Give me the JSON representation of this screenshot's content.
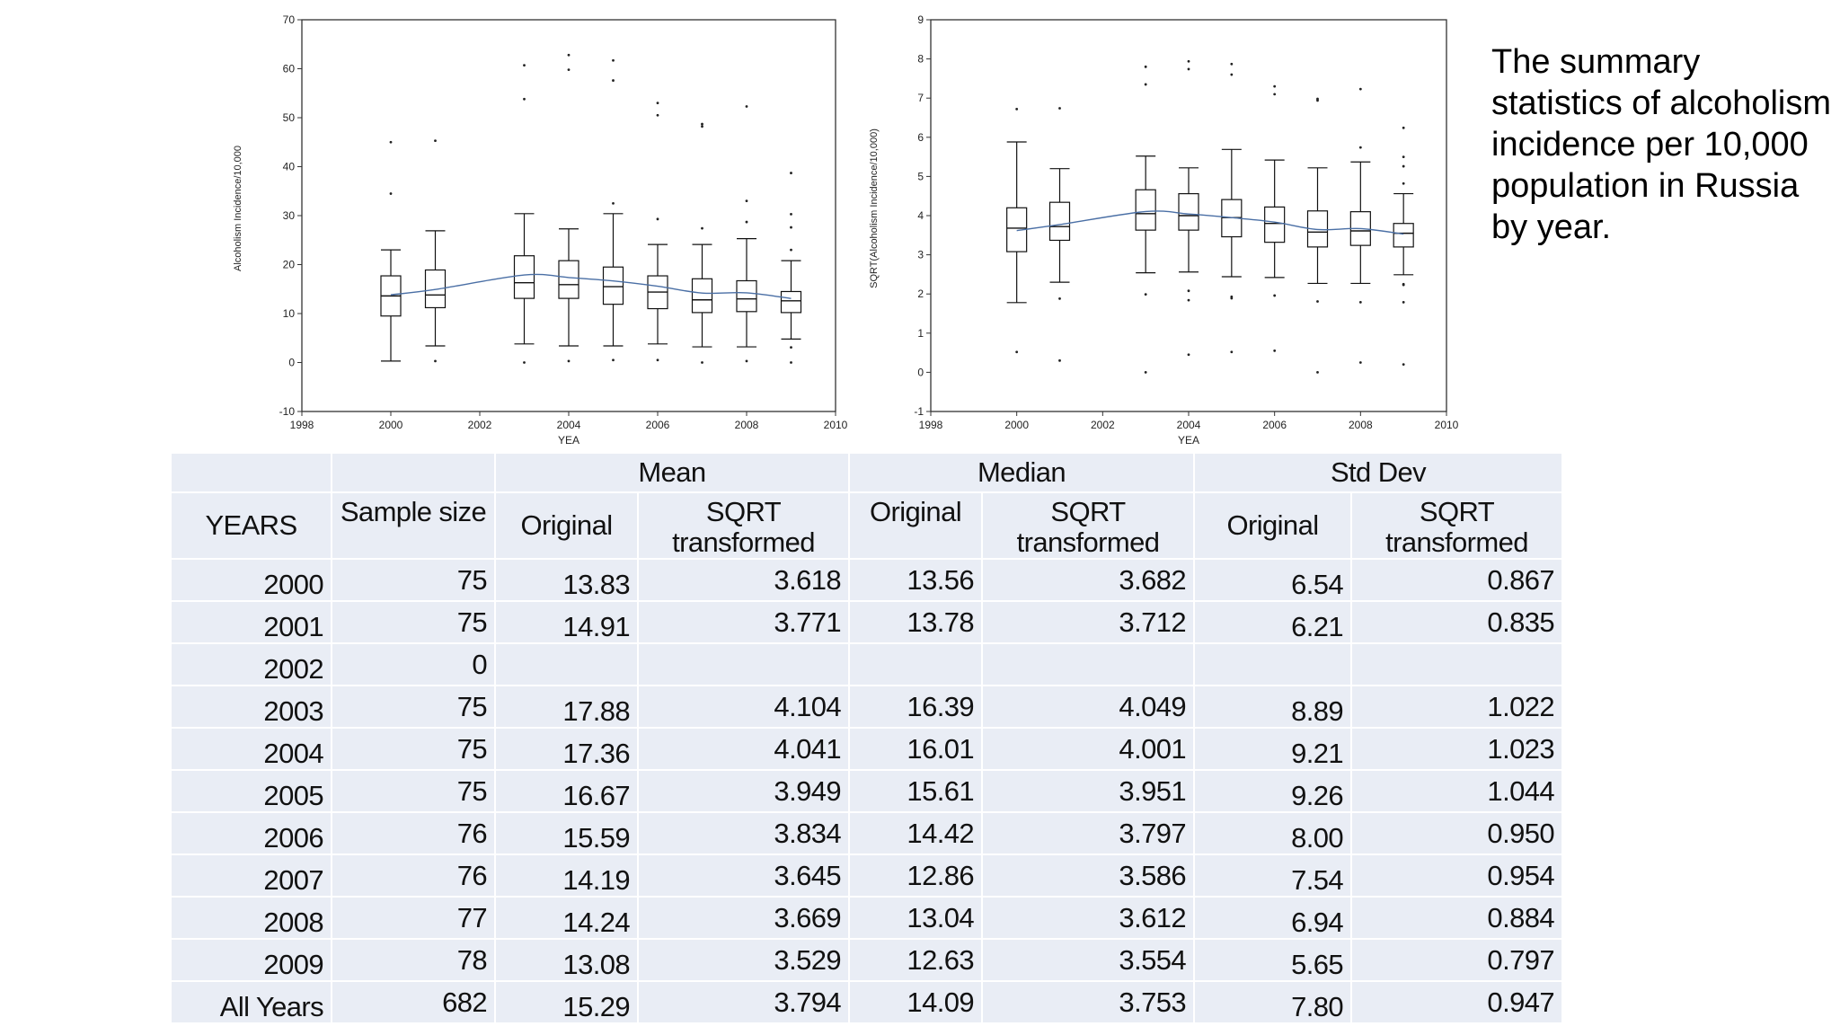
{
  "caption": "The summary statistics of alcoholism incidence per 10,000 population in Russia by year.",
  "chart_data": [
    {
      "type": "boxplot",
      "xlabel": "YEA",
      "ylabel": "Alcoholism Incidence/10,000",
      "xlim": [
        1998,
        2010
      ],
      "ylim": [
        -10,
        70
      ],
      "xticks": [
        1998,
        2000,
        2002,
        2004,
        2006,
        2008,
        2010
      ],
      "yticks": [
        -10,
        0,
        10,
        20,
        30,
        40,
        50,
        60,
        70
      ],
      "grid": false,
      "line_color": "#4a6fa5",
      "boxes": [
        {
          "x": 2000,
          "whisker_low": 0.3,
          "q1": 9.5,
          "median": 13.6,
          "q3": 17.7,
          "whisker_high": 23.0,
          "outliers": [
            34.5,
            45.0
          ]
        },
        {
          "x": 2001,
          "whisker_low": 3.4,
          "q1": 11.2,
          "median": 13.8,
          "q3": 18.9,
          "whisker_high": 26.9,
          "outliers": [
            0.3,
            45.3
          ]
        },
        {
          "x": 2003,
          "whisker_low": 3.8,
          "q1": 13.1,
          "median": 16.3,
          "q3": 21.8,
          "whisker_high": 30.4,
          "outliers": [
            0.0,
            53.8,
            60.7
          ]
        },
        {
          "x": 2004,
          "whisker_low": 3.4,
          "q1": 13.1,
          "median": 15.9,
          "q3": 20.8,
          "whisker_high": 27.3,
          "outliers": [
            0.3,
            59.8,
            62.8
          ]
        },
        {
          "x": 2005,
          "whisker_low": 3.4,
          "q1": 11.9,
          "median": 15.5,
          "q3": 19.5,
          "whisker_high": 30.4,
          "outliers": [
            0.5,
            32.5,
            57.6,
            61.7
          ]
        },
        {
          "x": 2006,
          "whisker_low": 3.8,
          "q1": 11.0,
          "median": 14.4,
          "q3": 17.7,
          "whisker_high": 24.1,
          "outliers": [
            0.5,
            29.3,
            50.5,
            53.0
          ]
        },
        {
          "x": 2007,
          "whisker_low": 3.2,
          "q1": 10.2,
          "median": 12.8,
          "q3": 17.1,
          "whisker_high": 24.1,
          "outliers": [
            0.0,
            27.4,
            48.2,
            48.7
          ]
        },
        {
          "x": 2008,
          "whisker_low": 3.2,
          "q1": 10.4,
          "median": 13.0,
          "q3": 16.7,
          "whisker_high": 25.3,
          "outliers": [
            0.3,
            28.7,
            33.0,
            52.3
          ]
        },
        {
          "x": 2009,
          "whisker_low": 4.8,
          "q1": 10.2,
          "median": 12.6,
          "q3": 14.5,
          "whisker_high": 20.8,
          "outliers": [
            0.0,
            3.1,
            23.0,
            27.6,
            30.3,
            38.7
          ]
        }
      ],
      "mean_line": {
        "x": [
          2000,
          2001,
          2003,
          2004,
          2005,
          2006,
          2007,
          2008,
          2009
        ],
        "y": [
          13.83,
          14.91,
          17.88,
          17.36,
          16.67,
          15.59,
          14.19,
          14.24,
          13.08
        ]
      }
    },
    {
      "type": "boxplot",
      "xlabel": "YEA",
      "ylabel": "SQRT(Alcoholism Incidence/10,000)",
      "xlim": [
        1998,
        2010
      ],
      "ylim": [
        -1,
        9
      ],
      "xticks": [
        1998,
        2000,
        2002,
        2004,
        2006,
        2008,
        2010
      ],
      "yticks": [
        -1,
        0,
        1,
        2,
        3,
        4,
        5,
        6,
        7,
        8,
        9
      ],
      "grid": false,
      "line_color": "#4a6fa5",
      "boxes": [
        {
          "x": 2000,
          "whisker_low": 1.78,
          "q1": 3.08,
          "median": 3.68,
          "q3": 4.2,
          "whisker_high": 5.88,
          "outliers": [
            0.52,
            6.72
          ]
        },
        {
          "x": 2001,
          "whisker_low": 2.3,
          "q1": 3.37,
          "median": 3.72,
          "q3": 4.34,
          "whisker_high": 5.2,
          "outliers": [
            0.3,
            1.88,
            6.74
          ]
        },
        {
          "x": 2003,
          "whisker_low": 2.54,
          "q1": 3.63,
          "median": 4.05,
          "q3": 4.66,
          "whisker_high": 5.52,
          "outliers": [
            0.0,
            1.99,
            7.35,
            7.8
          ]
        },
        {
          "x": 2004,
          "whisker_low": 2.56,
          "q1": 3.63,
          "median": 4.0,
          "q3": 4.56,
          "whisker_high": 5.22,
          "outliers": [
            0.45,
            1.84,
            2.08,
            7.74,
            7.94
          ]
        },
        {
          "x": 2005,
          "whisker_low": 2.44,
          "q1": 3.46,
          "median": 3.95,
          "q3": 4.41,
          "whisker_high": 5.69,
          "outliers": [
            0.52,
            1.89,
            1.93,
            7.6,
            7.87
          ]
        },
        {
          "x": 2006,
          "whisker_low": 2.42,
          "q1": 3.32,
          "median": 3.8,
          "q3": 4.22,
          "whisker_high": 5.42,
          "outliers": [
            0.55,
            1.96,
            7.1,
            7.3
          ]
        },
        {
          "x": 2007,
          "whisker_low": 2.27,
          "q1": 3.2,
          "median": 3.58,
          "q3": 4.12,
          "whisker_high": 5.22,
          "outliers": [
            0.0,
            1.81,
            6.94,
            6.98
          ]
        },
        {
          "x": 2008,
          "whisker_low": 2.27,
          "q1": 3.24,
          "median": 3.61,
          "q3": 4.1,
          "whisker_high": 5.37,
          "outliers": [
            0.25,
            1.79,
            5.74,
            7.23
          ]
        },
        {
          "x": 2009,
          "whisker_low": 2.49,
          "q1": 3.2,
          "median": 3.55,
          "q3": 3.8,
          "whisker_high": 4.56,
          "outliers": [
            0.2,
            1.79,
            2.23,
            2.25,
            4.82,
            5.26,
            5.5,
            6.24
          ]
        }
      ],
      "mean_line": {
        "x": [
          2000,
          2001,
          2003,
          2004,
          2005,
          2006,
          2007,
          2008,
          2009
        ],
        "y": [
          3.618,
          3.771,
          4.104,
          4.041,
          3.949,
          3.834,
          3.645,
          3.669,
          3.529
        ]
      }
    }
  ],
  "table": {
    "group_headers": [
      "Mean",
      "Median",
      "Std Dev"
    ],
    "col_years": "YEARS",
    "col_sample": "Sample size",
    "sub_original": "Original",
    "sub_sqrt": "SQRT transformed",
    "rows": [
      [
        "2000",
        "75",
        "13.83",
        "3.618",
        "13.56",
        "3.682",
        "6.54",
        "0.867"
      ],
      [
        "2001",
        "75",
        "14.91",
        "3.771",
        "13.78",
        "3.712",
        "6.21",
        "0.835"
      ],
      [
        "2002",
        "0",
        "",
        "",
        "",
        "",
        "",
        ""
      ],
      [
        "2003",
        "75",
        "17.88",
        "4.104",
        "16.39",
        "4.049",
        "8.89",
        "1.022"
      ],
      [
        "2004",
        "75",
        "17.36",
        "4.041",
        "16.01",
        "4.001",
        "9.21",
        "1.023"
      ],
      [
        "2005",
        "75",
        "16.67",
        "3.949",
        "15.61",
        "3.951",
        "9.26",
        "1.044"
      ],
      [
        "2006",
        "76",
        "15.59",
        "3.834",
        "14.42",
        "3.797",
        "8.00",
        "0.950"
      ],
      [
        "2007",
        "76",
        "14.19",
        "3.645",
        "12.86",
        "3.586",
        "7.54",
        "0.954"
      ],
      [
        "2008",
        "77",
        "14.24",
        "3.669",
        "13.04",
        "3.612",
        "6.94",
        "0.884"
      ],
      [
        "2009",
        "78",
        "13.08",
        "3.529",
        "12.63",
        "3.554",
        "5.65",
        "0.797"
      ],
      [
        "All Years",
        "682",
        "15.29",
        "3.794",
        "14.09",
        "3.753",
        "7.80",
        "0.947"
      ]
    ]
  }
}
